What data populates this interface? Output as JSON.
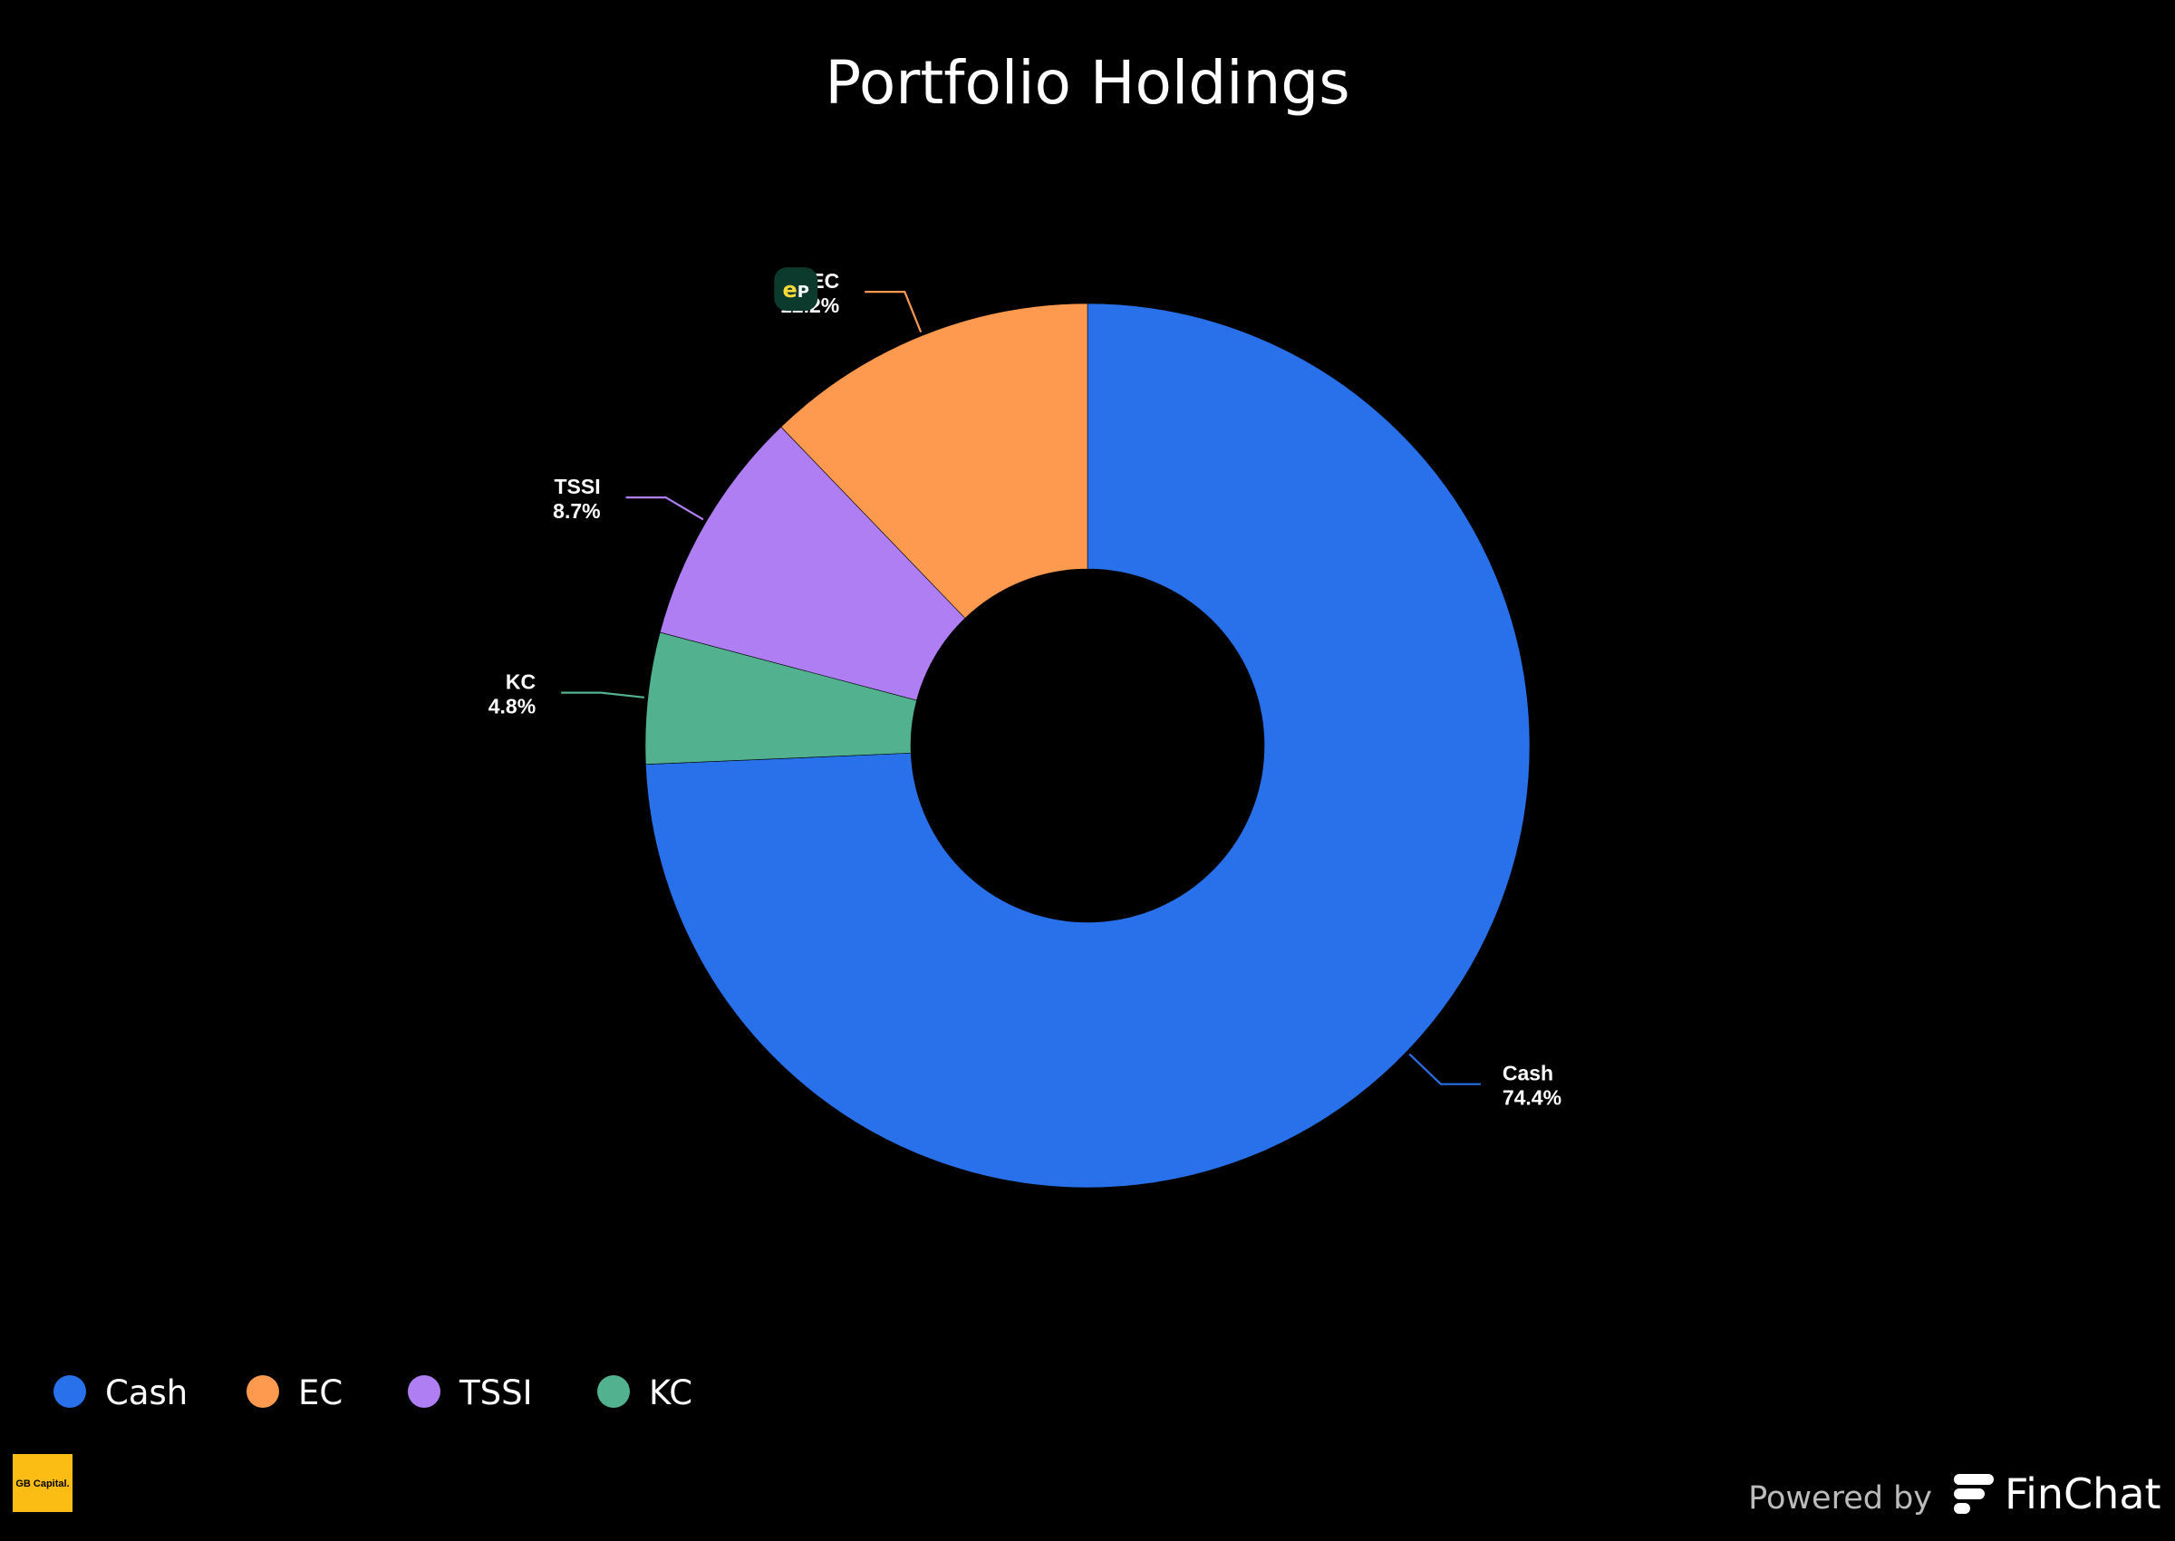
{
  "chart_data": {
    "type": "pie",
    "donut": true,
    "title": "Portfolio Holdings",
    "slices": [
      {
        "name": "Cash",
        "value": 74.4,
        "label": "74.4%",
        "color": "#2971eb"
      },
      {
        "name": "EC",
        "value": 12.2,
        "label": "12.2%",
        "color": "#fe9a4f",
        "icon": "ep-logo-icon"
      },
      {
        "name": "TSSI",
        "value": 8.7,
        "label": "8.7%",
        "color": "#ae7ef2"
      },
      {
        "name": "KC",
        "value": 4.8,
        "label": "4.8%",
        "color": "#52b290"
      }
    ],
    "legend": [
      "Cash",
      "EC",
      "TSSI",
      "KC"
    ],
    "legend_position": "bottom-left"
  },
  "icons": {
    "ec": "ep-logo-icon",
    "corner_logo": "gb-capital-logo",
    "brand_logo": "finchat-logo-icon"
  },
  "ep_logo_text": "eP",
  "corner_logo_text": "GB Capital.",
  "footer": {
    "powered_by": "Powered by",
    "brand": "FinChat"
  }
}
